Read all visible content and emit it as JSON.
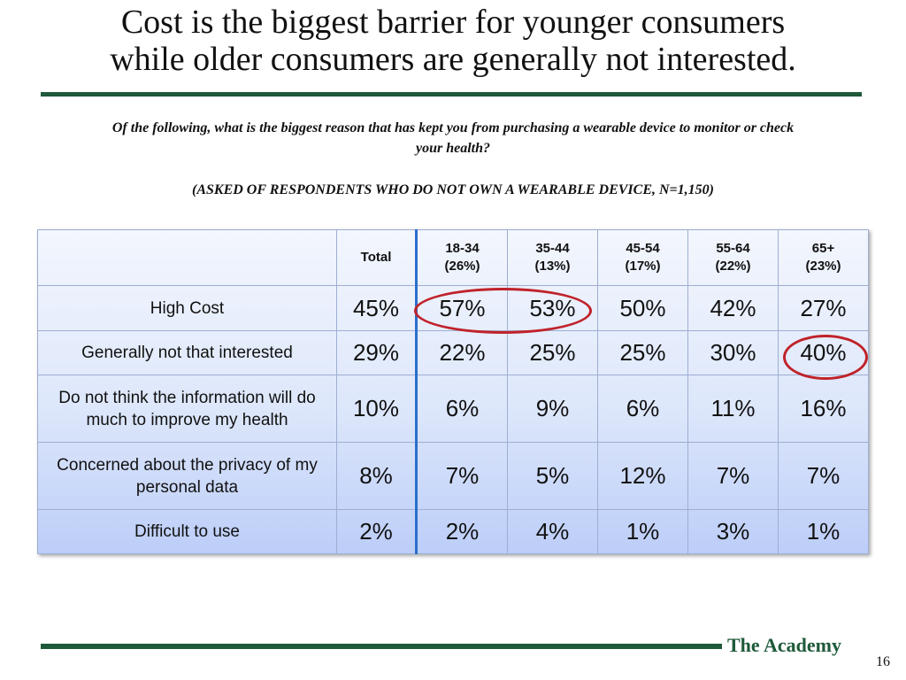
{
  "title_line1": "Cost is the biggest barrier for younger consumers",
  "title_line2": "while older consumers are generally not interested.",
  "question": "Of the following, what is the biggest reason that has kept you from purchasing a wearable device to monitor or check your health?",
  "qualifier": "(ASKED OF RESPONDENTS WHO DO NOT OWN A WEARABLE DEVICE, N=1,150)",
  "table": {
    "columns": [
      {
        "label": "Total",
        "sub": ""
      },
      {
        "label": "18-34",
        "sub": "(26%)"
      },
      {
        "label": "35-44",
        "sub": "(13%)"
      },
      {
        "label": "45-54",
        "sub": "(17%)"
      },
      {
        "label": "55-64",
        "sub": "(22%)"
      },
      {
        "label": "65+",
        "sub": "(23%)"
      }
    ],
    "rows": [
      {
        "label": "High Cost",
        "values": [
          "45%",
          "57%",
          "53%",
          "50%",
          "42%",
          "27%"
        ]
      },
      {
        "label": "Generally not that interested",
        "values": [
          "29%",
          "22%",
          "25%",
          "25%",
          "30%",
          "40%"
        ]
      },
      {
        "label": "Do not think the information will do much to improve my health",
        "values": [
          "10%",
          "6%",
          "9%",
          "6%",
          "11%",
          "16%"
        ]
      },
      {
        "label": "Concerned about the privacy of my personal data",
        "values": [
          "8%",
          "7%",
          "5%",
          "12%",
          "7%",
          "7%"
        ]
      },
      {
        "label": "Difficult to use",
        "values": [
          "2%",
          "2%",
          "4%",
          "1%",
          "3%",
          "1%"
        ]
      }
    ]
  },
  "highlight_color": "#c0222a",
  "accent_color": "#1e5a3a",
  "footer": {
    "brand": "The Academy",
    "page_number": "16"
  }
}
